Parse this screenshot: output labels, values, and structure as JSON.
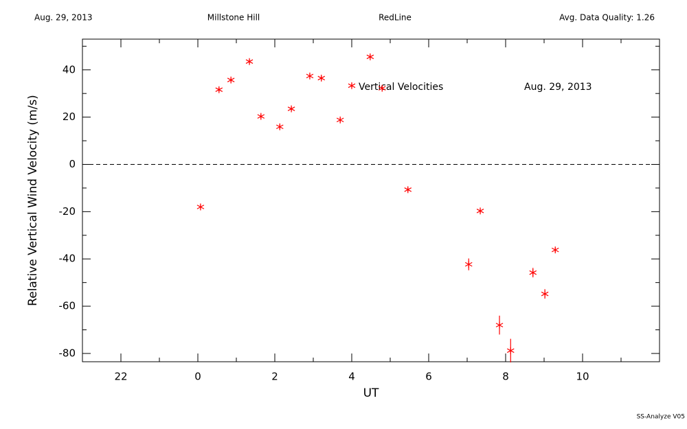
{
  "chart_data": {
    "type": "scatter",
    "header": [
      "Aug. 29, 2013",
      "Millstone Hill",
      "RedLine",
      "Avg. Data Quality: 1.26"
    ],
    "annotations": [
      "Vertical Velocities",
      "Aug. 29, 2013"
    ],
    "xlabel": "UT",
    "ylabel": "Relative Vertical Wind Velocity (m/s)",
    "footer": "SS-Analyze V05",
    "xlim": [
      -3,
      12
    ],
    "ylim": [
      -83.5,
      53
    ],
    "xticks": [
      {
        "value": -2,
        "label": "22"
      },
      0,
      2,
      4,
      6,
      8,
      10
    ],
    "xminor": [
      -3,
      -1,
      1,
      3,
      5,
      7,
      9,
      11
    ],
    "yticks": [
      -80,
      -60,
      -40,
      -20,
      0,
      20,
      40
    ],
    "yminor": [
      -70,
      -50,
      -30,
      -10,
      10,
      30,
      50
    ],
    "zero_line": true,
    "series": [
      {
        "color": "#ff0000",
        "x": [
          0.07,
          0.55,
          0.86,
          1.34,
          1.64,
          2.13,
          2.43,
          2.91,
          3.21,
          3.7,
          4.0,
          4.48,
          4.79,
          5.46,
          7.04,
          7.34,
          7.84,
          8.13,
          8.71,
          9.02,
          9.29
        ],
        "values": [
          -18,
          31.6,
          35.7,
          43.5,
          20.3,
          15.9,
          23.5,
          37.4,
          36.5,
          18.8,
          33.3,
          45.5,
          32.2,
          -10.7,
          -42.3,
          -19.7,
          -68,
          -78.8,
          -45.8,
          -54.8,
          -36.2
        ],
        "errors": [
          1,
          1,
          1,
          1,
          1,
          1,
          1,
          1,
          1,
          1,
          1,
          1,
          1,
          1,
          2.5,
          1,
          4,
          5,
          2,
          2,
          1
        ]
      }
    ]
  }
}
